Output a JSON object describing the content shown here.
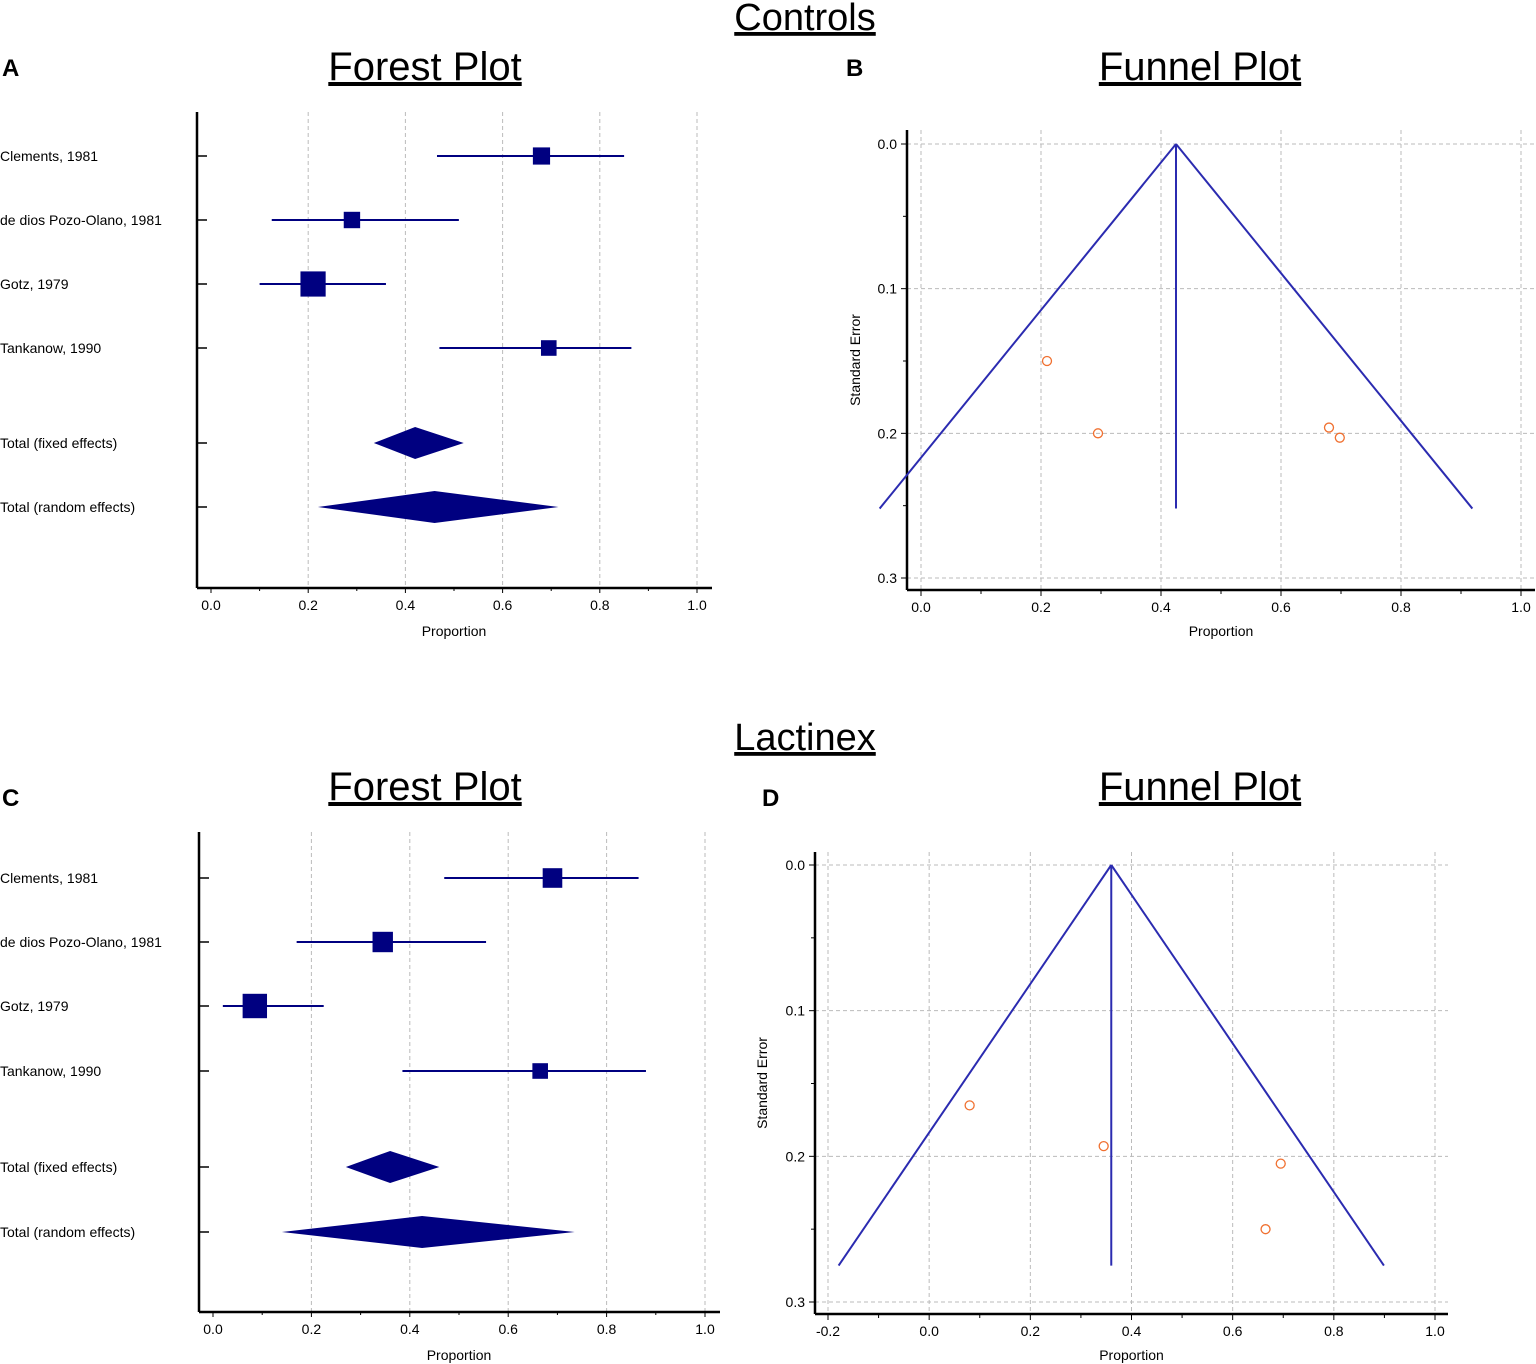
{
  "colors": {
    "marker": "#000080",
    "funnel_line": "#2b2bb0",
    "point": "#f07030",
    "grid": "#bbbbbb",
    "axis": "#000000"
  },
  "groups": [
    {
      "title": "Controls",
      "forest": {
        "letter": "A",
        "title": "Forest Plot",
        "chart_data": {
          "type": "forest",
          "xlabel": "Proportion",
          "xlim": [
            0.0,
            1.0
          ],
          "xticks": [
            "0.0",
            "0.2",
            "0.4",
            "0.6",
            "0.8",
            "1.0"
          ],
          "studies": [
            {
              "label": "Clements, 1981",
              "estimate": 0.68,
              "lower": 0.465,
              "upper": 0.85,
              "weight": 0.45
            },
            {
              "label": "de dios Pozo-Olano, 1981",
              "estimate": 0.29,
              "lower": 0.125,
              "upper": 0.51,
              "weight": 0.4
            },
            {
              "label": "Gotz, 1979",
              "estimate": 0.21,
              "lower": 0.1,
              "upper": 0.36,
              "weight": 0.95
            },
            {
              "label": "Tankanow, 1990",
              "estimate": 0.695,
              "lower": 0.47,
              "upper": 0.865,
              "weight": 0.35
            }
          ],
          "totals": [
            {
              "label": "Total (fixed effects)",
              "estimate": 0.42,
              "lower": 0.335,
              "upper": 0.52
            },
            {
              "label": "Total (random effects)",
              "estimate": 0.46,
              "lower": 0.22,
              "upper": 0.715
            }
          ]
        }
      },
      "funnel": {
        "letter": "B",
        "title": "Funnel Plot",
        "chart_data": {
          "type": "scatter",
          "xlabel": "Proportion",
          "ylabel": "Standard Error",
          "xlim": [
            0.0,
            1.0
          ],
          "ylim": [
            0.0,
            0.3
          ],
          "xticks": [
            "0.0",
            "0.2",
            "0.4",
            "0.6",
            "0.8",
            "1.0"
          ],
          "yticks": [
            "0.0",
            "0.1",
            "0.2",
            "0.3"
          ],
          "pooled": 0.425,
          "funnel_max_se": 0.252,
          "points": [
            {
              "x": 0.21,
              "se": 0.15
            },
            {
              "x": 0.295,
              "se": 0.2
            },
            {
              "x": 0.68,
              "se": 0.196
            },
            {
              "x": 0.698,
              "se": 0.203
            }
          ]
        }
      }
    },
    {
      "title": "Lactinex",
      "forest": {
        "letter": "C",
        "title": "Forest Plot",
        "chart_data": {
          "type": "forest",
          "xlabel": "Proportion",
          "xlim": [
            0.0,
            1.0
          ],
          "xticks": [
            "0.0",
            "0.2",
            "0.4",
            "0.6",
            "0.8",
            "1.0"
          ],
          "studies": [
            {
              "label": "Clements, 1981",
              "estimate": 0.69,
              "lower": 0.47,
              "upper": 0.865,
              "weight": 0.6
            },
            {
              "label": "de dios Pozo-Olano, 1981",
              "estimate": 0.345,
              "lower": 0.17,
              "upper": 0.555,
              "weight": 0.65
            },
            {
              "label": "Gotz, 1979",
              "estimate": 0.085,
              "lower": 0.02,
              "upper": 0.225,
              "weight": 0.9
            },
            {
              "label": "Tankanow, 1990",
              "estimate": 0.665,
              "lower": 0.385,
              "upper": 0.88,
              "weight": 0.35
            }
          ],
          "totals": [
            {
              "label": "Total (fixed effects)",
              "estimate": 0.36,
              "lower": 0.27,
              "upper": 0.46
            },
            {
              "label": "Total (random effects)",
              "estimate": 0.425,
              "lower": 0.14,
              "upper": 0.735
            }
          ]
        }
      },
      "funnel": {
        "letter": "D",
        "title": "Funnel Plot",
        "chart_data": {
          "type": "scatter",
          "xlabel": "Proportion",
          "ylabel": "Standard Error",
          "xlim": [
            -0.2,
            1.0
          ],
          "ylim": [
            0.0,
            0.3
          ],
          "xticks": [
            "-0.2",
            "0.0",
            "0.2",
            "0.4",
            "0.6",
            "0.8",
            "1.0"
          ],
          "yticks": [
            "0.0",
            "0.1",
            "0.2",
            "0.3"
          ],
          "pooled": 0.36,
          "funnel_max_se": 0.275,
          "points": [
            {
              "x": 0.08,
              "se": 0.165
            },
            {
              "x": 0.345,
              "se": 0.193
            },
            {
              "x": 0.695,
              "se": 0.205
            },
            {
              "x": 0.665,
              "se": 0.25
            }
          ]
        }
      }
    }
  ]
}
